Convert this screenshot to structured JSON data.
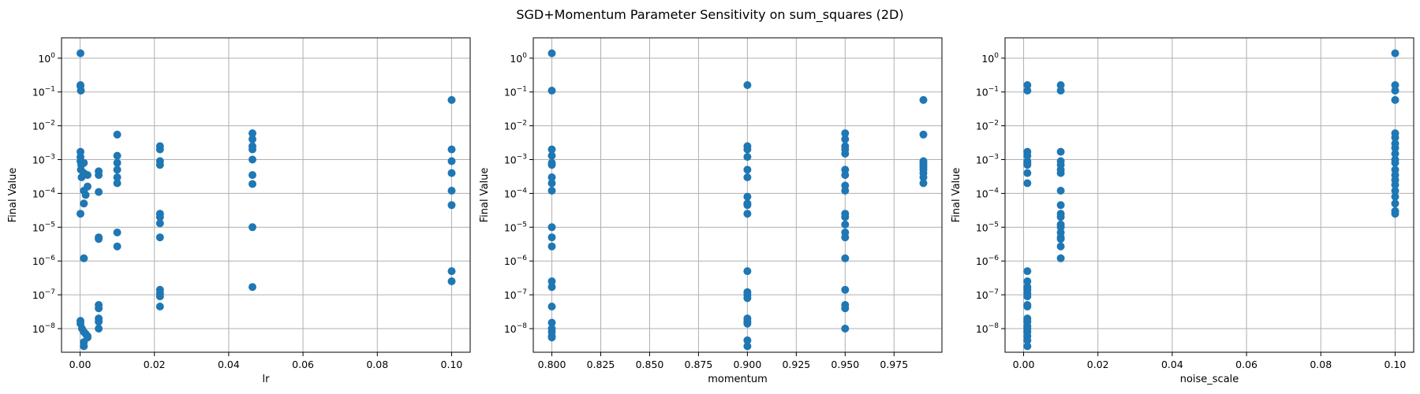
{
  "figure": {
    "title": "SGD+Momentum Parameter Sensitivity on sum_squares (2D)",
    "point_color": "#1f77b4"
  },
  "chart_data": [
    {
      "type": "scatter",
      "xlabel": "lr",
      "ylabel": "Final Value",
      "yscale": "log",
      "xlim": [
        -0.005,
        0.105
      ],
      "ylim": [
        2e-09,
        4
      ],
      "xticks": [
        0.0,
        0.02,
        0.04,
        0.06,
        0.08,
        0.1
      ],
      "xtick_labels": [
        "0.00",
        "0.02",
        "0.04",
        "0.06",
        "0.08",
        "0.10"
      ],
      "yticks": [
        1e-08,
        1e-07,
        1e-06,
        1e-05,
        0.0001,
        0.001,
        0.01,
        0.1,
        1
      ],
      "ytick_labels": [
        {
          "base": "10",
          "exp": "−8"
        },
        {
          "base": "10",
          "exp": "−7"
        },
        {
          "base": "10",
          "exp": "−6"
        },
        {
          "base": "10",
          "exp": "−5"
        },
        {
          "base": "10",
          "exp": "−4"
        },
        {
          "base": "10",
          "exp": "−3"
        },
        {
          "base": "10",
          "exp": "−2"
        },
        {
          "base": "10",
          "exp": "−1"
        },
        {
          "base": "10",
          "exp": "0"
        }
      ],
      "grid": true,
      "points": [
        [
          0.0001,
          1.4
        ],
        [
          0.0001,
          0.16
        ],
        [
          0.0001,
          0.15
        ],
        [
          0.0002,
          0.11
        ],
        [
          0.0001,
          0.0017
        ],
        [
          0.0001,
          0.0012
        ],
        [
          0.0001,
          0.0009
        ],
        [
          0.0003,
          0.0007
        ],
        [
          0.0002,
          0.0005
        ],
        [
          0.0004,
          0.0003
        ],
        [
          0.0001,
          2.5e-05
        ],
        [
          0.001,
          0.0008
        ],
        [
          0.001,
          0.0004
        ],
        [
          0.001,
          0.00012
        ],
        [
          0.001,
          5e-05
        ],
        [
          0.0015,
          9e-05
        ],
        [
          0.002,
          0.00035
        ],
        [
          0.002,
          0.00016
        ],
        [
          0.001,
          1.2e-06
        ],
        [
          0.0001,
          1.7e-08
        ],
        [
          0.0001,
          1.4e-08
        ],
        [
          0.0005,
          1e-08
        ],
        [
          0.001,
          8e-09
        ],
        [
          0.0015,
          7e-09
        ],
        [
          0.002,
          6e-09
        ],
        [
          0.002,
          5.5e-09
        ],
        [
          0.001,
          4e-09
        ],
        [
          0.001,
          3e-09
        ],
        [
          0.005,
          0.00045
        ],
        [
          0.005,
          0.00035
        ],
        [
          0.005,
          0.00011
        ],
        [
          0.005,
          5e-06
        ],
        [
          0.005,
          4.5e-06
        ],
        [
          0.005,
          5e-08
        ],
        [
          0.005,
          4e-08
        ],
        [
          0.005,
          2e-08
        ],
        [
          0.005,
          1.6e-08
        ],
        [
          0.005,
          1e-08
        ],
        [
          0.01,
          0.0055
        ],
        [
          0.01,
          0.0013
        ],
        [
          0.01,
          0.0008
        ],
        [
          0.01,
          0.0005
        ],
        [
          0.01,
          0.0003
        ],
        [
          0.01,
          0.0002
        ],
        [
          0.01,
          7e-06
        ],
        [
          0.01,
          2.7e-06
        ],
        [
          0.0215,
          0.0025
        ],
        [
          0.0215,
          0.002
        ],
        [
          0.0215,
          0.0009
        ],
        [
          0.0215,
          0.0007
        ],
        [
          0.0215,
          2.5e-05
        ],
        [
          0.0215,
          2e-05
        ],
        [
          0.0215,
          1.3e-05
        ],
        [
          0.0215,
          5e-06
        ],
        [
          0.0215,
          1.4e-07
        ],
        [
          0.0215,
          1.1e-07
        ],
        [
          0.0215,
          9e-08
        ],
        [
          0.0215,
          4.5e-08
        ],
        [
          0.0464,
          0.006
        ],
        [
          0.0464,
          0.004
        ],
        [
          0.0464,
          0.0025
        ],
        [
          0.0464,
          0.002
        ],
        [
          0.0464,
          0.001
        ],
        [
          0.0464,
          0.00035
        ],
        [
          0.0464,
          0.00019
        ],
        [
          0.0464,
          1e-05
        ],
        [
          0.0464,
          1.7e-07
        ],
        [
          0.1,
          0.058
        ],
        [
          0.1,
          0.002
        ],
        [
          0.1,
          0.0009
        ],
        [
          0.1,
          0.0004
        ],
        [
          0.1,
          0.00012
        ],
        [
          0.1,
          4.5e-05
        ],
        [
          0.1,
          5e-07
        ],
        [
          0.1,
          2.5e-07
        ]
      ]
    },
    {
      "type": "scatter",
      "xlabel": "momentum",
      "ylabel": "Final Value",
      "yscale": "log",
      "xlim": [
        0.7905,
        0.9995
      ],
      "ylim": [
        2e-09,
        4
      ],
      "xticks": [
        0.8,
        0.825,
        0.85,
        0.875,
        0.9,
        0.925,
        0.95,
        0.975
      ],
      "xtick_labels": [
        "0.800",
        "0.825",
        "0.850",
        "0.875",
        "0.900",
        "0.925",
        "0.950",
        "0.975"
      ],
      "yticks": [
        1e-08,
        1e-07,
        1e-06,
        1e-05,
        0.0001,
        0.001,
        0.01,
        0.1,
        1
      ],
      "ytick_labels": [
        {
          "base": "10",
          "exp": "−8"
        },
        {
          "base": "10",
          "exp": "−7"
        },
        {
          "base": "10",
          "exp": "−6"
        },
        {
          "base": "10",
          "exp": "−5"
        },
        {
          "base": "10",
          "exp": "−4"
        },
        {
          "base": "10",
          "exp": "−3"
        },
        {
          "base": "10",
          "exp": "−2"
        },
        {
          "base": "10",
          "exp": "−1"
        },
        {
          "base": "10",
          "exp": "0"
        }
      ],
      "grid": true,
      "points": [
        [
          0.8,
          1.4
        ],
        [
          0.8,
          0.11
        ],
        [
          0.8,
          0.002
        ],
        [
          0.8,
          0.0013
        ],
        [
          0.8,
          0.0008
        ],
        [
          0.8,
          0.0007
        ],
        [
          0.8,
          0.0003
        ],
        [
          0.8,
          0.0002
        ],
        [
          0.8,
          0.00012
        ],
        [
          0.8,
          1e-05
        ],
        [
          0.8,
          5e-06
        ],
        [
          0.8,
          2.7e-06
        ],
        [
          0.8,
          2.5e-07
        ],
        [
          0.8,
          1.7e-07
        ],
        [
          0.8,
          4.5e-08
        ],
        [
          0.8,
          1.5e-08
        ],
        [
          0.8,
          1e-08
        ],
        [
          0.8,
          8e-09
        ],
        [
          0.8,
          6e-09
        ],
        [
          0.8,
          5.5e-09
        ],
        [
          0.9,
          0.16
        ],
        [
          0.9,
          0.0025
        ],
        [
          0.9,
          0.002
        ],
        [
          0.9,
          0.0012
        ],
        [
          0.9,
          0.0005
        ],
        [
          0.9,
          0.0003
        ],
        [
          0.9,
          8e-05
        ],
        [
          0.9,
          5e-05
        ],
        [
          0.9,
          4.5e-05
        ],
        [
          0.9,
          2.5e-05
        ],
        [
          0.9,
          5e-07
        ],
        [
          0.9,
          1.2e-07
        ],
        [
          0.9,
          1e-07
        ],
        [
          0.9,
          8e-08
        ],
        [
          0.9,
          2e-08
        ],
        [
          0.9,
          1.6e-08
        ],
        [
          0.9,
          1.4e-08
        ],
        [
          0.9,
          4.5e-09
        ],
        [
          0.9,
          3e-09
        ],
        [
          0.95,
          0.006
        ],
        [
          0.95,
          0.004
        ],
        [
          0.95,
          0.0025
        ],
        [
          0.95,
          0.002
        ],
        [
          0.95,
          0.0015
        ],
        [
          0.95,
          0.0005
        ],
        [
          0.95,
          0.00035
        ],
        [
          0.95,
          0.00017
        ],
        [
          0.95,
          0.00012
        ],
        [
          0.95,
          2.5e-05
        ],
        [
          0.95,
          2e-05
        ],
        [
          0.95,
          1.2e-05
        ],
        [
          0.95,
          7e-06
        ],
        [
          0.95,
          5e-06
        ],
        [
          0.95,
          1.2e-06
        ],
        [
          0.95,
          1.4e-07
        ],
        [
          0.95,
          5e-08
        ],
        [
          0.95,
          4e-08
        ],
        [
          0.95,
          1e-08
        ],
        [
          0.99,
          0.058
        ],
        [
          0.99,
          0.0055
        ],
        [
          0.99,
          0.0009
        ],
        [
          0.99,
          0.0008
        ],
        [
          0.99,
          0.0007
        ],
        [
          0.99,
          0.0006
        ],
        [
          0.99,
          0.0005
        ],
        [
          0.99,
          0.0004
        ],
        [
          0.99,
          0.0003
        ],
        [
          0.99,
          0.0002
        ]
      ]
    },
    {
      "type": "scatter",
      "xlabel": "noise_scale",
      "ylabel": "Final Value",
      "yscale": "log",
      "xlim": [
        -0.005,
        0.105
      ],
      "ylim": [
        2e-09,
        4
      ],
      "xticks": [
        0.0,
        0.02,
        0.04,
        0.06,
        0.08,
        0.1
      ],
      "xtick_labels": [
        "0.00",
        "0.02",
        "0.04",
        "0.06",
        "0.08",
        "0.10"
      ],
      "yticks": [
        1e-08,
        1e-07,
        1e-06,
        1e-05,
        0.0001,
        0.001,
        0.01,
        0.1,
        1
      ],
      "ytick_labels": [
        {
          "base": "10",
          "exp": "−8"
        },
        {
          "base": "10",
          "exp": "−7"
        },
        {
          "base": "10",
          "exp": "−6"
        },
        {
          "base": "10",
          "exp": "−5"
        },
        {
          "base": "10",
          "exp": "−4"
        },
        {
          "base": "10",
          "exp": "−3"
        },
        {
          "base": "10",
          "exp": "−2"
        },
        {
          "base": "10",
          "exp": "−1"
        },
        {
          "base": "10",
          "exp": "0"
        }
      ],
      "grid": true,
      "points": [
        [
          0.001,
          0.16
        ],
        [
          0.001,
          0.11
        ],
        [
          0.001,
          0.0017
        ],
        [
          0.001,
          0.0013
        ],
        [
          0.001,
          0.0009
        ],
        [
          0.001,
          0.0008
        ],
        [
          0.001,
          0.0007
        ],
        [
          0.001,
          0.0004
        ],
        [
          0.001,
          0.0002
        ],
        [
          0.001,
          5e-07
        ],
        [
          0.001,
          2.5e-07
        ],
        [
          0.001,
          1.7e-07
        ],
        [
          0.001,
          1.4e-07
        ],
        [
          0.001,
          1.1e-07
        ],
        [
          0.001,
          9e-08
        ],
        [
          0.001,
          5e-08
        ],
        [
          0.001,
          4.5e-08
        ],
        [
          0.001,
          2e-08
        ],
        [
          0.001,
          1.6e-08
        ],
        [
          0.001,
          1.2e-08
        ],
        [
          0.001,
          1e-08
        ],
        [
          0.001,
          8e-09
        ],
        [
          0.001,
          6e-09
        ],
        [
          0.001,
          4.5e-09
        ],
        [
          0.001,
          3e-09
        ],
        [
          0.01,
          0.16
        ],
        [
          0.01,
          0.11
        ],
        [
          0.01,
          0.0017
        ],
        [
          0.01,
          0.0009
        ],
        [
          0.01,
          0.0007
        ],
        [
          0.01,
          0.0005
        ],
        [
          0.01,
          0.0004
        ],
        [
          0.01,
          0.00012
        ],
        [
          0.01,
          4.5e-05
        ],
        [
          0.01,
          2.5e-05
        ],
        [
          0.01,
          2e-05
        ],
        [
          0.01,
          1.2e-05
        ],
        [
          0.01,
          1e-05
        ],
        [
          0.01,
          7e-06
        ],
        [
          0.01,
          5e-06
        ],
        [
          0.01,
          4.5e-06
        ],
        [
          0.01,
          2.7e-06
        ],
        [
          0.01,
          1.2e-06
        ],
        [
          0.1,
          1.4
        ],
        [
          0.1,
          0.16
        ],
        [
          0.1,
          0.11
        ],
        [
          0.1,
          0.058
        ],
        [
          0.1,
          0.006
        ],
        [
          0.1,
          0.0045
        ],
        [
          0.1,
          0.003
        ],
        [
          0.1,
          0.0022
        ],
        [
          0.1,
          0.0015
        ],
        [
          0.1,
          0.001
        ],
        [
          0.1,
          0.0008
        ],
        [
          0.1,
          0.0005
        ],
        [
          0.1,
          0.00035
        ],
        [
          0.1,
          0.00025
        ],
        [
          0.1,
          0.00018
        ],
        [
          0.1,
          0.00012
        ],
        [
          0.1,
          8e-05
        ],
        [
          0.1,
          5e-05
        ],
        [
          0.1,
          3e-05
        ],
        [
          0.1,
          2.5e-05
        ]
      ]
    }
  ]
}
